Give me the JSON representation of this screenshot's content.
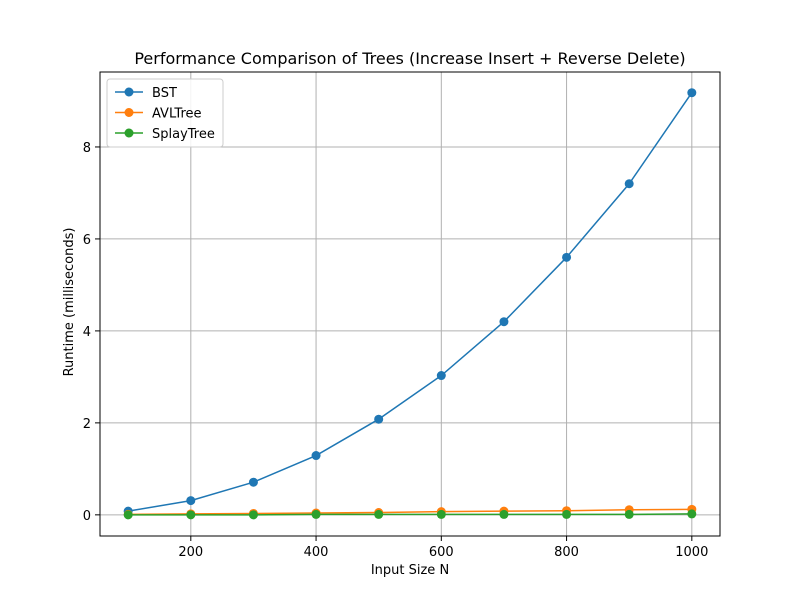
{
  "chart_data": {
    "type": "line",
    "title": "Performance Comparison of Trees (Increase Insert + Reverse Delete)",
    "xlabel": "Input Size N",
    "ylabel": "Runtime (milliseconds)",
    "x": [
      100,
      200,
      300,
      400,
      500,
      600,
      700,
      800,
      900,
      1000
    ],
    "xlim": [
      55,
      1045
    ],
    "ylim": [
      -0.46,
      9.63
    ],
    "xticks": [
      200,
      400,
      600,
      800,
      1000
    ],
    "yticks": [
      0,
      2,
      4,
      6,
      8
    ],
    "xtick_labels": [
      "200",
      "400",
      "600",
      "800",
      "1000"
    ],
    "ytick_labels": [
      "0",
      "2",
      "4",
      "6",
      "8"
    ],
    "grid": true,
    "legend_position": "top-left",
    "series": [
      {
        "name": "BST",
        "color": "#1f77b4",
        "values": [
          0.08,
          0.31,
          0.71,
          1.29,
          2.08,
          3.03,
          4.2,
          5.6,
          7.2,
          9.18
        ]
      },
      {
        "name": "AVLTree",
        "color": "#ff7f0e",
        "values": [
          0.01,
          0.02,
          0.03,
          0.04,
          0.05,
          0.07,
          0.08,
          0.09,
          0.11,
          0.12
        ]
      },
      {
        "name": "SplayTree",
        "color": "#2ca02c",
        "values": [
          0.0,
          0.0,
          0.0,
          0.01,
          0.01,
          0.01,
          0.01,
          0.01,
          0.01,
          0.02
        ]
      }
    ]
  }
}
